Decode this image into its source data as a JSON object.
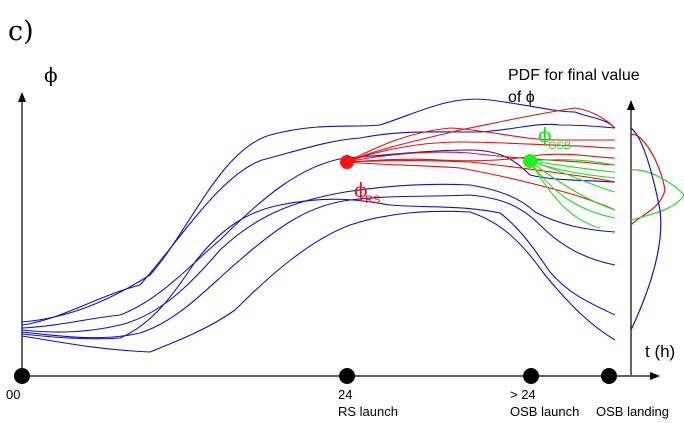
{
  "panel_label": "c)",
  "y_axis_label": "ϕ",
  "x_axis_label": "t (h)",
  "pdf_title_line1": "PDF for final value",
  "pdf_title_line2": "of ϕ",
  "marker_rs_symbol": "ϕ",
  "marker_rs_subscript": "RS",
  "marker_osb_symbol": "ϕ",
  "marker_osb_subscript": "OSB",
  "time_points": [
    {
      "tick": "00",
      "event": ""
    },
    {
      "tick": "24",
      "event": "RS launch"
    },
    {
      "tick": "> 24",
      "event": "OSB launch"
    },
    {
      "tick": "",
      "event": "OSB landing"
    }
  ],
  "colors": {
    "ensemble": "#1010cc",
    "rs_ensemble": "#e81010",
    "osb_ensemble": "#22dd22",
    "rs_marker": "#ff1010",
    "osb_marker": "#22ee22",
    "axis": "#000000"
  }
}
